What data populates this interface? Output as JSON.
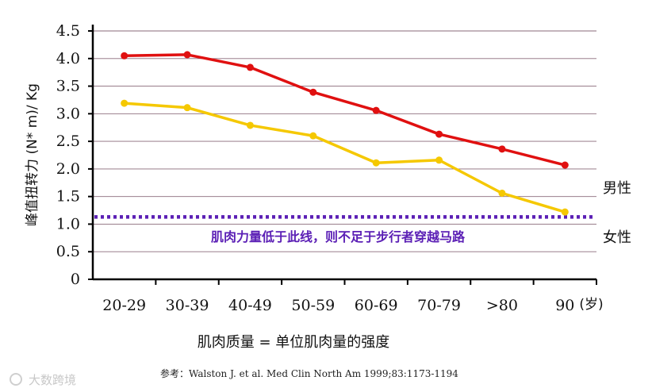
{
  "chart_data": {
    "type": "line",
    "ylabel": "峰值扭转力 (N* m)/ Kg",
    "ylim": [
      0,
      4.5
    ],
    "yticks": [
      "0",
      "0.5",
      "1.0",
      "1.5",
      "2.0",
      "2.5",
      "3.0",
      "3.5",
      "4.0",
      "4.5"
    ],
    "categories": [
      "20-29",
      "30-39",
      "40-49",
      "50-59",
      "60-69",
      "70-79",
      ">80",
      "90"
    ],
    "x_unit": "(岁)",
    "grid": true,
    "series": [
      {
        "name": "男性",
        "color": "#e01010",
        "values": [
          4.05,
          4.07,
          3.84,
          3.39,
          3.06,
          2.63,
          2.36,
          2.07
        ]
      },
      {
        "name": "女性",
        "color": "#f5c800",
        "values": [
          3.19,
          3.11,
          2.79,
          2.6,
          2.11,
          2.16,
          1.56,
          1.22
        ]
      }
    ],
    "threshold": {
      "value": 1.13,
      "color": "#5b1fb5",
      "label": "肌肉力量低于此线，则不足于步行者穿越马路"
    },
    "xlabel": "肌肉质量 = 单位肌肉量的强度"
  },
  "footer": {
    "reference": "参考：Walston J. et al. Med Clin North Am 1999;83:1173-1194",
    "watermark": "大数跨境"
  }
}
